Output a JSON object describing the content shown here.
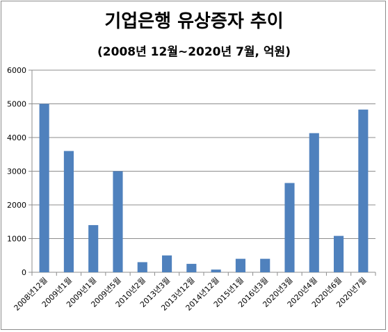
{
  "chart_data": {
    "type": "bar",
    "title": "기업은행 유상증자 추이",
    "subtitle": "(2008년 12월~2020년 7월, 억원)",
    "categories": [
      "2008년12월",
      "2009년1월",
      "2009년1월",
      "2009년5월",
      "2010년2월",
      "2013년3월",
      "2013년12월",
      "2014년12월",
      "2015년1월",
      "2016년3월",
      "2020년3월",
      "2020년4월",
      "2020년6월",
      "2020년7월"
    ],
    "values": [
      5000,
      3600,
      1400,
      3000,
      300,
      500,
      250,
      80,
      400,
      400,
      2650,
      4130,
      1080,
      4830
    ],
    "ylim": [
      0,
      6000
    ],
    "yticks": [
      0,
      1000,
      2000,
      3000,
      4000,
      5000,
      6000
    ],
    "grid": true,
    "bar_color": "#4f81bd"
  }
}
